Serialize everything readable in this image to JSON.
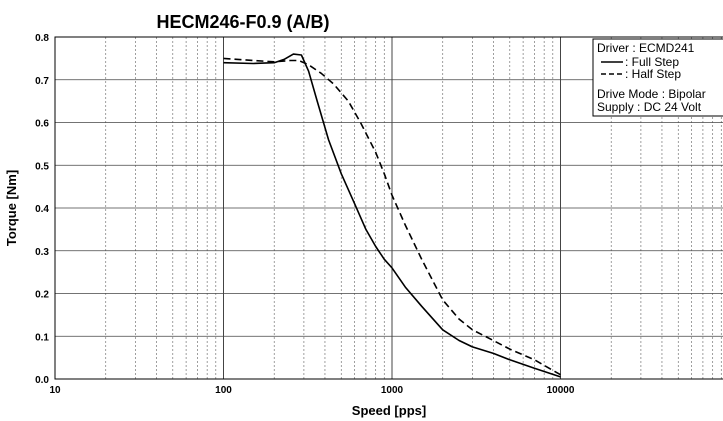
{
  "chart_data": {
    "type": "line",
    "title": "HECM246-F0.9 (A/B)",
    "xlabel": "Speed [pps]",
    "ylabel": "Torque [Nm]",
    "xscale": "log",
    "xlim": [
      10,
      100000
    ],
    "ylim": [
      0,
      0.8
    ],
    "x_tick_labels": [
      "10",
      "100",
      "1000",
      "10000"
    ],
    "y_tick_labels": [
      "0.0",
      "0.1",
      "0.2",
      "0.3",
      "0.4",
      "0.5",
      "0.6",
      "0.7",
      "0.8"
    ],
    "grid": true,
    "legend_placement": "top-right",
    "legend_lines": [
      "Driver : ECMD241",
      "Drive Mode : Bipolar",
      "Supply : DC 24 Volt"
    ],
    "series": [
      {
        "name": ": Full Step",
        "style": "solid",
        "x": [
          100,
          150,
          200,
          230,
          260,
          290,
          320,
          360,
          420,
          500,
          600,
          700,
          800,
          900,
          1000,
          1200,
          1500,
          2000,
          2500,
          3000,
          4000,
          5000,
          7000,
          10000
        ],
        "y": [
          0.74,
          0.738,
          0.74,
          0.748,
          0.76,
          0.758,
          0.72,
          0.65,
          0.56,
          0.48,
          0.41,
          0.35,
          0.31,
          0.28,
          0.26,
          0.215,
          0.17,
          0.115,
          0.09,
          0.075,
          0.06,
          0.045,
          0.025,
          0.005
        ]
      },
      {
        "name": ": Half Step",
        "style": "dashed",
        "x": [
          100,
          150,
          200,
          250,
          280,
          320,
          380,
          450,
          550,
          650,
          800,
          900,
          1000,
          1200,
          1500,
          2000,
          2500,
          3000,
          4000,
          5000,
          7000,
          10000
        ],
        "y": [
          0.75,
          0.745,
          0.742,
          0.745,
          0.745,
          0.735,
          0.715,
          0.69,
          0.65,
          0.6,
          0.53,
          0.48,
          0.43,
          0.36,
          0.28,
          0.185,
          0.14,
          0.115,
          0.09,
          0.07,
          0.045,
          0.01
        ]
      }
    ]
  },
  "colors": {
    "line": "#000000",
    "grid_major": "#444444",
    "grid_minor": "#777777"
  }
}
